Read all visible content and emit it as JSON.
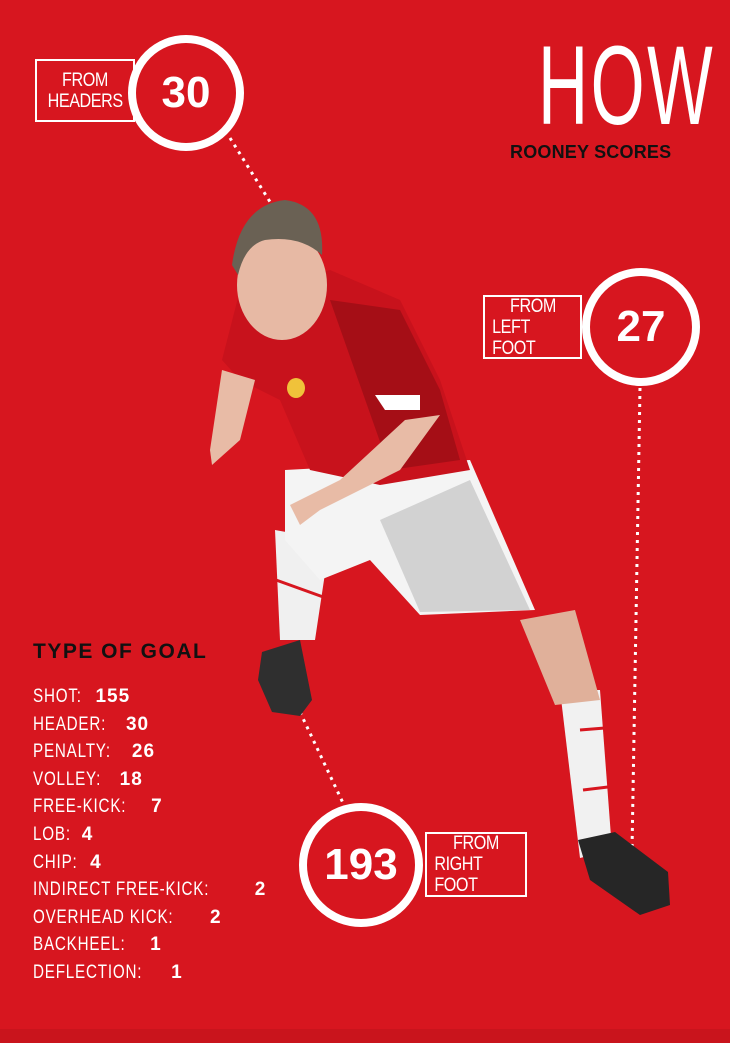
{
  "title": {
    "main": "HOW",
    "sub": "ROONEY SCORES"
  },
  "callouts": {
    "headers": {
      "label_line1": "FROM",
      "label_line2": "HEADERS",
      "value": "30"
    },
    "left_foot": {
      "label_line1": "FROM",
      "label_line2": "LEFT FOOT",
      "value": "27"
    },
    "right_foot": {
      "label_line1": "FROM",
      "label_line2": "RIGHT FOOT",
      "value": "193"
    }
  },
  "type_of_goal": {
    "heading": "TYPE OF GOAL",
    "items": [
      {
        "label": "SHOT:",
        "value": "155"
      },
      {
        "label": "HEADER:",
        "value": "30"
      },
      {
        "label": "PENALTY:",
        "value": "26"
      },
      {
        "label": "VOLLEY:",
        "value": "18"
      },
      {
        "label": "FREE-KICK:",
        "value": "7"
      },
      {
        "label": "LOB:",
        "value": "4"
      },
      {
        "label": "CHIP:",
        "value": "4"
      },
      {
        "label": "INDIRECT FREE-KICK:",
        "value": "2"
      },
      {
        "label": "OVERHEAD KICK:",
        "value": "2"
      },
      {
        "label": "BACKHEEL:",
        "value": "1"
      },
      {
        "label": "DEFLECTION:",
        "value": "1"
      }
    ]
  },
  "colors": {
    "background": "#d7161f",
    "accent": "#ffffff",
    "heading": "#111111"
  }
}
